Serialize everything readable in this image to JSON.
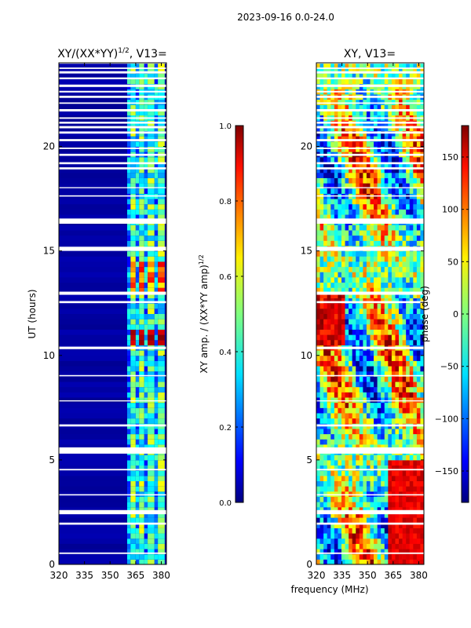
{
  "figure": {
    "suptitle": "2023-09-16 0.0-24.0",
    "xlabel": "frequency (MHz)"
  },
  "chart_data": [
    {
      "type": "heatmap",
      "title": "XY/(XX*YY)",
      "title_exponent": "1/2",
      "title_suffix": ", V13=",
      "xlabel": "frequency (MHz)",
      "ylabel": "UT (hours)",
      "xlim": [
        320,
        383
      ],
      "ylim": [
        0,
        24
      ],
      "xticks": [
        320,
        335,
        350,
        365,
        380
      ],
      "yticks": [
        0,
        5,
        10,
        15,
        20
      ],
      "band_edges_mhz": [
        360,
        362,
        365,
        367,
        370,
        372,
        376,
        378,
        382
      ],
      "colorbar": {
        "label": "XY amp. / (XX*YY amp)",
        "label_exponent": "1/2",
        "range": [
          0,
          1
        ],
        "ticks": [
          "0.0",
          "0.2",
          "0.4",
          "0.6",
          "0.8",
          "1.0"
        ]
      },
      "colormap": "jet"
    },
    {
      "type": "heatmap",
      "title": "XY, V13=",
      "xlabel": "frequency (MHz)",
      "ylabel": "",
      "xlim": [
        320,
        383
      ],
      "ylim": [
        0,
        24
      ],
      "xticks": [
        320,
        335,
        350,
        365,
        380
      ],
      "yticks": [
        0,
        5,
        10,
        15,
        20
      ],
      "colorbar": {
        "label": "phase (deg)",
        "range": [
          -180,
          180
        ],
        "ticks": [
          "150",
          "100",
          "50",
          "0",
          "−50",
          "−100",
          "−150"
        ]
      },
      "colormap": "jet"
    }
  ]
}
